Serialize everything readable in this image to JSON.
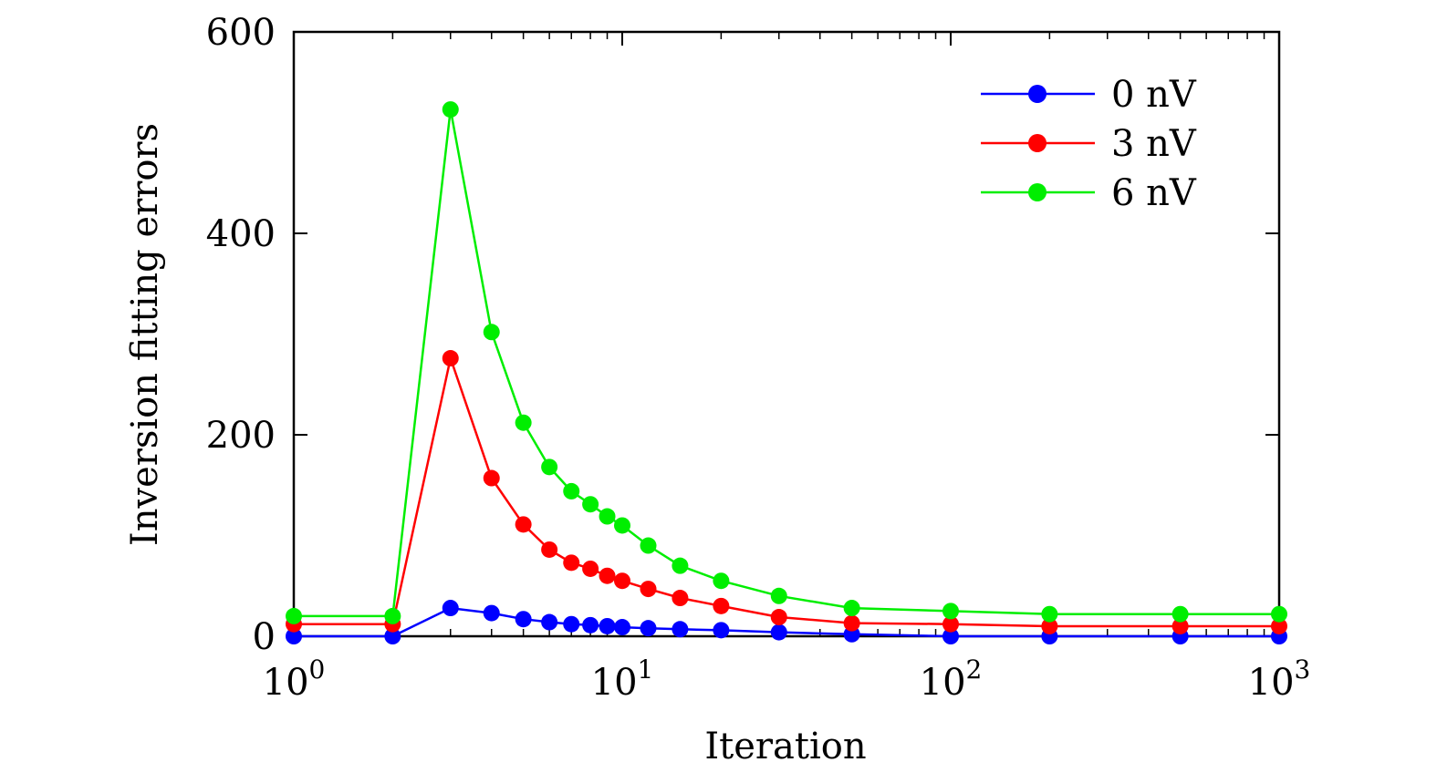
{
  "chart_data": {
    "type": "line",
    "xscale": "log",
    "xlim": [
      1,
      1000
    ],
    "ylim": [
      0,
      600
    ],
    "xlabel": "Iteration",
    "ylabel": "Inversion fitting errors",
    "xticks": [
      {
        "value": 1,
        "base": "10",
        "exp": "0"
      },
      {
        "value": 10,
        "base": "10",
        "exp": "1"
      },
      {
        "value": 100,
        "base": "10",
        "exp": "2"
      },
      {
        "value": 1000,
        "base": "10",
        "exp": "3"
      }
    ],
    "yticks": [
      {
        "value": 0,
        "label": "0"
      },
      {
        "value": 200,
        "label": "200"
      },
      {
        "value": 400,
        "label": "400"
      },
      {
        "value": 600,
        "label": "600"
      }
    ],
    "grid": false,
    "legend": "top-right",
    "series": [
      {
        "name": "0 nV",
        "color": "#0000ff",
        "x": [
          1,
          2,
          3,
          4,
          5,
          6,
          7,
          8,
          9,
          10,
          12,
          15,
          20,
          30,
          50,
          100,
          200,
          500,
          1000
        ],
        "y": [
          0,
          0,
          28,
          23,
          17,
          14,
          12,
          11,
          10,
          9,
          8,
          7,
          6,
          4,
          2,
          0,
          0,
          0,
          0
        ]
      },
      {
        "name": "3 nV",
        "color": "#ff0000",
        "x": [
          1,
          2,
          3,
          4,
          5,
          6,
          7,
          8,
          9,
          10,
          12,
          15,
          20,
          30,
          50,
          100,
          200,
          500,
          1000
        ],
        "y": [
          12,
          12,
          276,
          157,
          111,
          86,
          73,
          67,
          60,
          55,
          47,
          38,
          30,
          19,
          13,
          12,
          10,
          10,
          10
        ]
      },
      {
        "name": "6 nV",
        "color": "#00ee00",
        "x": [
          1,
          2,
          3,
          4,
          5,
          6,
          7,
          8,
          9,
          10,
          12,
          15,
          20,
          30,
          50,
          100,
          200,
          500,
          1000
        ],
        "y": [
          20,
          20,
          523,
          302,
          212,
          168,
          144,
          131,
          119,
          110,
          90,
          70,
          55,
          40,
          28,
          25,
          22,
          22,
          22
        ]
      }
    ]
  }
}
